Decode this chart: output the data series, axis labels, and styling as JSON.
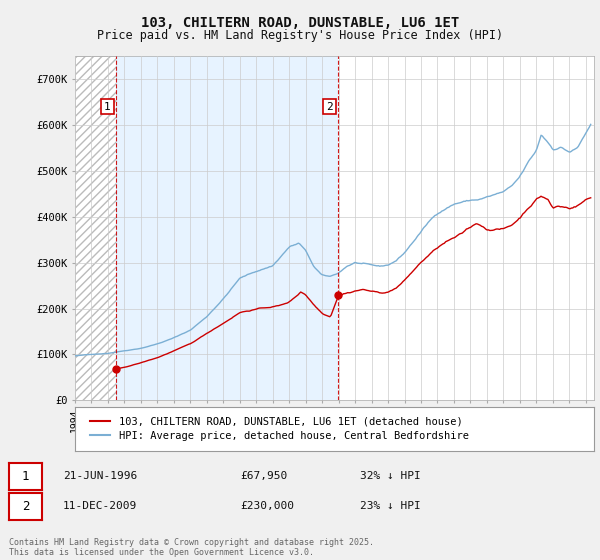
{
  "title_line1": "103, CHILTERN ROAD, DUNSTABLE, LU6 1ET",
  "title_line2": "Price paid vs. HM Land Registry's House Price Index (HPI)",
  "background_color": "#f0f0f0",
  "plot_bg_color": "#ffffff",
  "grid_color": "#cccccc",
  "red_color": "#cc0000",
  "blue_color": "#7bafd4",
  "hatch_color": "#cccccc",
  "shade_color": "#ddeeff",
  "marker1_year": 1996.47,
  "marker1_value": 67950,
  "marker2_year": 2009.95,
  "marker2_value": 230000,
  "legend_line1": "103, CHILTERN ROAD, DUNSTABLE, LU6 1ET (detached house)",
  "legend_line2": "HPI: Average price, detached house, Central Bedfordshire",
  "annotation1_date": "21-JUN-1996",
  "annotation1_price": "£67,950",
  "annotation1_hpi": "32% ↓ HPI",
  "annotation2_date": "11-DEC-2009",
  "annotation2_price": "£230,000",
  "annotation2_hpi": "23% ↓ HPI",
  "copyright_text": "Contains HM Land Registry data © Crown copyright and database right 2025.\nThis data is licensed under the Open Government Licence v3.0.",
  "ylim_max": 750000,
  "xmin": 1994,
  "xmax": 2025.5
}
